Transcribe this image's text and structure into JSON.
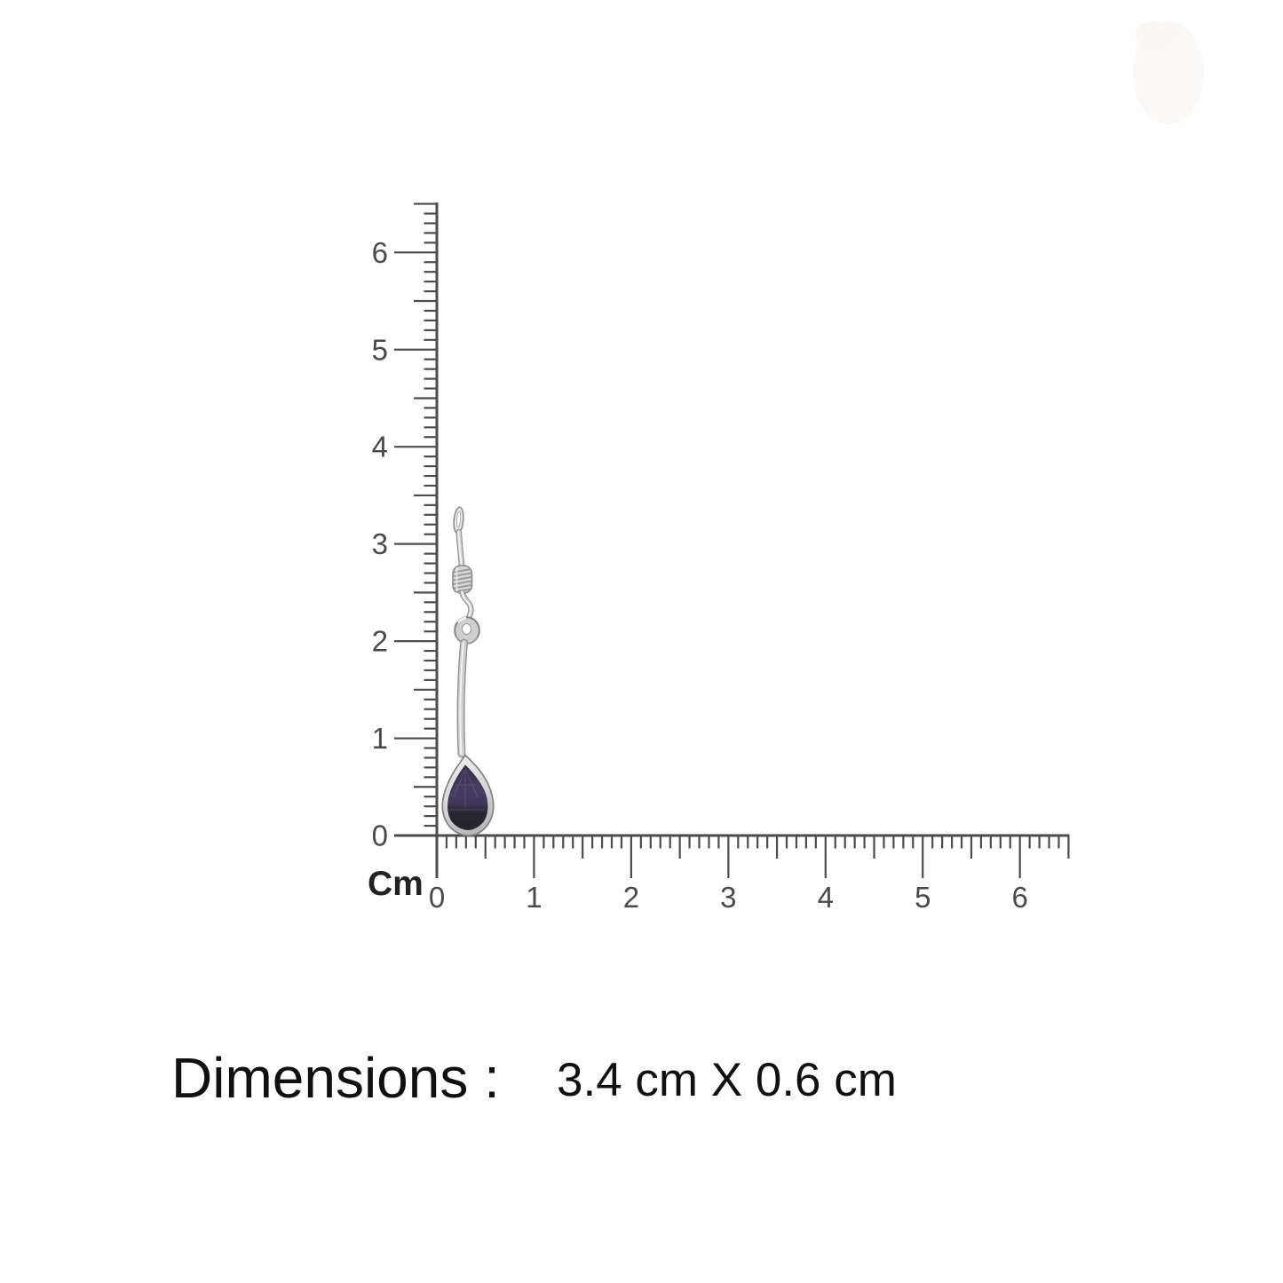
{
  "page": {
    "background_color": "#ffffff"
  },
  "ruler": {
    "unit_label": "Cm",
    "vertical_labels": [
      "6",
      "5",
      "4",
      "3",
      "2",
      "1",
      "0"
    ],
    "horizontal_labels": [
      "0",
      "1",
      "2",
      "3",
      "4",
      "5",
      "6"
    ],
    "tick_color": "#4c4c4c",
    "number_color": "#4a4a4a",
    "unit_label_color": "#222222"
  },
  "earring": {
    "kind": "silver-drop-earring-with-pear-stone",
    "metal_color": "#cccccc",
    "metal_highlight": "#f4f4f4",
    "metal_outline": "#8c8c8c",
    "stone_color": "#44395f",
    "stone_dark_color": "#25232a"
  },
  "dimensions_label": "Dimensions :",
  "dimensions_value": "3.4 cm X 0.6 cm"
}
